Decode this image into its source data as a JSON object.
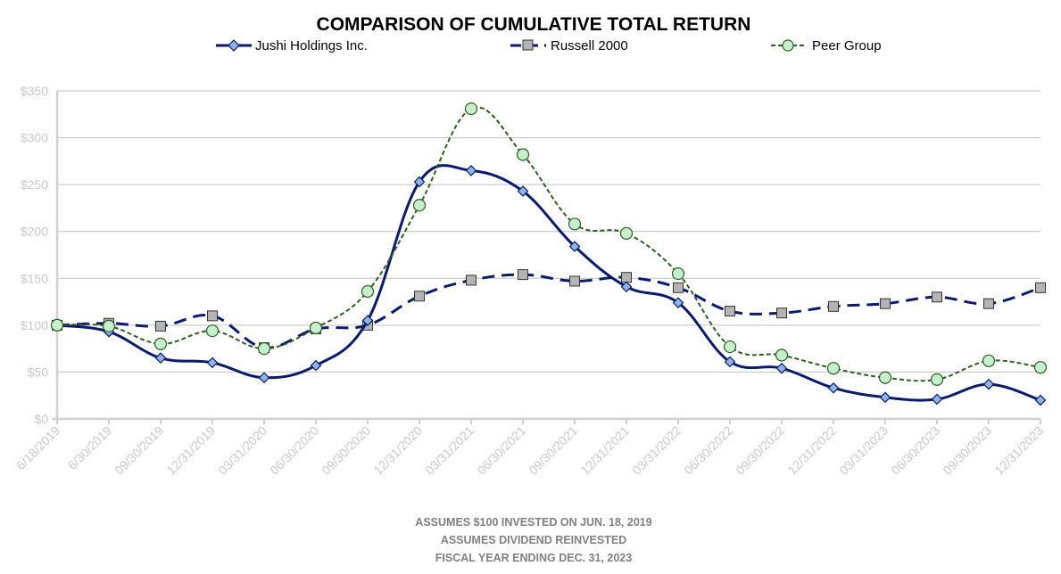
{
  "chart_data": {
    "type": "line",
    "title": "COMPARISON OF CUMULATIVE TOTAL RETURN",
    "categories": [
      "6/18/2019",
      "6/30/2019",
      "09/30/2019",
      "12/31/2019",
      "03/31/2020",
      "06/30/2020",
      "09/30/2020",
      "12/31/2020",
      "03/31/2021",
      "06/30/2021",
      "09/30/2021",
      "12/31/2021",
      "03/31/2022",
      "06/30/2022",
      "09/30/2022",
      "12/31/2022",
      "03/31/2023",
      "06/30/2023",
      "09/30/2023",
      "12/31/2023"
    ],
    "series": [
      {
        "name": "Jushi Holdings Inc.",
        "color": "#0a1a6e",
        "marker": "diamond",
        "marker_fill": "#8db4e2",
        "values": [
          100,
          93,
          65,
          60,
          44,
          57,
          105,
          253,
          265,
          243,
          184,
          141,
          124,
          61,
          54,
          33,
          23,
          21,
          37,
          20
        ]
      },
      {
        "name": "Russell 2000",
        "color": "#0a1a6e",
        "marker": "square",
        "marker_fill": "#b4b4b4",
        "values": [
          100,
          102,
          99,
          110,
          76,
          96,
          100,
          131,
          148,
          154,
          147,
          151,
          140,
          115,
          113,
          120,
          123,
          130,
          123,
          140
        ]
      },
      {
        "name": "Peer Group",
        "color": "#2e5e1e",
        "marker": "circle",
        "marker_fill": "#c6efce",
        "values": [
          100,
          99,
          80,
          94,
          75,
          97,
          136,
          228,
          331,
          282,
          208,
          198,
          155,
          77,
          68,
          54,
          44,
          42,
          62,
          55
        ]
      }
    ],
    "ylim": [
      0,
      350
    ],
    "yticks": [
      "$0",
      "$50",
      "$100",
      "$150",
      "$200",
      "$250",
      "$300",
      "$350"
    ],
    "ytick_values": [
      0,
      50,
      100,
      150,
      200,
      250,
      300,
      350
    ],
    "xlabel": "",
    "ylabel": "",
    "legend_position": "top",
    "grid": true
  },
  "footnotes": [
    "ASSUMES $100 INVESTED ON JUN. 18, 2019",
    "ASSUMES DIVIDEND REINVESTED",
    "FISCAL YEAR ENDING DEC. 31, 2023"
  ],
  "colors": {
    "grid": "#c0c0c0",
    "axis": "#d0d0d0",
    "tick_text": "#c8c8c8",
    "footnote": "#808080"
  }
}
